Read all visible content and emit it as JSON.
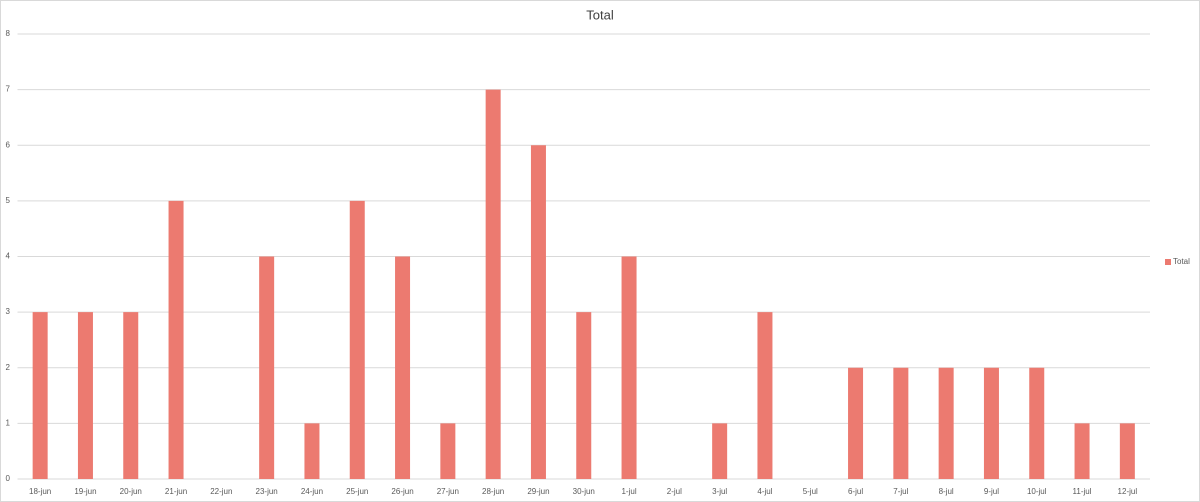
{
  "chart_data": {
    "type": "bar",
    "title": "Total",
    "categories": [
      "18-jun",
      "19-jun",
      "20-jun",
      "21-jun",
      "22-jun",
      "23-jun",
      "24-jun",
      "25-jun",
      "26-jun",
      "27-jun",
      "28-jun",
      "29-jun",
      "30-jun",
      "1-jul",
      "2-jul",
      "3-jul",
      "4-jul",
      "5-jul",
      "6-jul",
      "7-jul",
      "8-jul",
      "9-jul",
      "10-jul",
      "11-jul",
      "12-jul"
    ],
    "series": [
      {
        "name": "Total",
        "color": "#ec7a70",
        "values": [
          3,
          3,
          3,
          5,
          0,
          4,
          1,
          5,
          4,
          1,
          7,
          6,
          3,
          4,
          0,
          1,
          3,
          0,
          2,
          2,
          2,
          2,
          2,
          1,
          1
        ]
      }
    ],
    "ylim": [
      0,
      8
    ],
    "yticks": [
      0,
      1,
      2,
      3,
      4,
      5,
      6,
      7,
      8
    ],
    "grid": true,
    "legend": "right"
  }
}
